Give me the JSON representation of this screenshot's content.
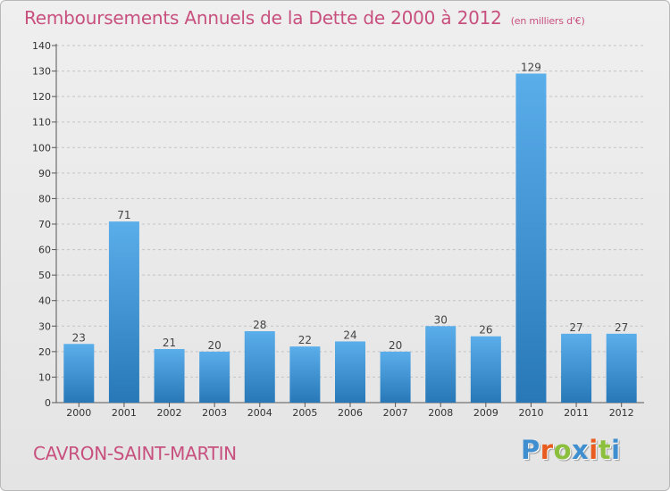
{
  "page": {
    "title": "Remboursements Annuels de la Dette de 2000 à 2012",
    "unit": "(en milliers d'€)",
    "commune": "CAVRON-SAINT-MARTIN",
    "logo": "Proxiti",
    "logo_icon": "proxiti-logo-icon"
  },
  "colors": {
    "title": "#c8507e",
    "bar_light": "#5aaeea",
    "bar_dark": "#2878b8",
    "grid": "#c4c4c4",
    "logo_letters": [
      "#3f8fd0",
      "#e85c20",
      "#8cbf3c",
      "#3f8fd0",
      "#e85c20",
      "#8cbf3c",
      "#3f8fd0"
    ]
  },
  "chart_data": {
    "type": "bar",
    "title": "Remboursements Annuels de la Dette de 2000 à 2012",
    "unit": "(en milliers d'€)",
    "categories": [
      "2000",
      "2001",
      "2002",
      "2003",
      "2004",
      "2005",
      "2006",
      "2007",
      "2008",
      "2009",
      "2010",
      "2011",
      "2012"
    ],
    "values": [
      23,
      71,
      21,
      20,
      28,
      22,
      24,
      20,
      30,
      26,
      129,
      27,
      27
    ],
    "ylim": [
      0,
      140
    ],
    "yticks": [
      0,
      10,
      20,
      30,
      40,
      50,
      60,
      70,
      80,
      90,
      100,
      110,
      120,
      130,
      140
    ],
    "grid": true,
    "legend": "none"
  }
}
